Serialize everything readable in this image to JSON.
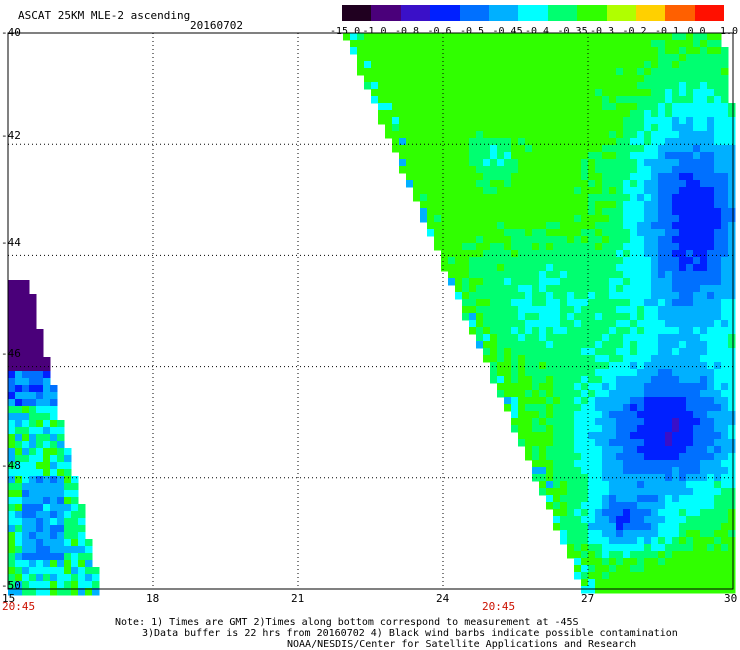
{
  "header": {
    "title": "ASCAT 25KM MLE-2 ascending",
    "date": "20160702"
  },
  "colorbar": {
    "labels": [
      "-15.0",
      "-1.0",
      "-0.8",
      "-0.6",
      "-0.5",
      "-0.45",
      "-0.4",
      "-0.35",
      "-0.3",
      "-0.2",
      "-0.1",
      "0.0",
      "1.0"
    ],
    "colors": [
      "#200020",
      "#4a007a",
      "#3a10c8",
      "#0020ff",
      "#0070ff",
      "#00b0ff",
      "#00ffff",
      "#00ff70",
      "#30ff00",
      "#b0ff00",
      "#ffd000",
      "#ff6000",
      "#ff1000"
    ]
  },
  "axes": {
    "y_ticks": [
      "-40",
      "-42",
      "-44",
      "-46",
      "-48",
      "-50"
    ],
    "x_ticks": [
      "15",
      "18",
      "21",
      "24",
      "27",
      "30"
    ],
    "lat_range": [
      -50,
      -40
    ],
    "lon_range": [
      15,
      30
    ]
  },
  "times": [
    {
      "label": "20:45",
      "lon": 15
    },
    {
      "label": "20:45",
      "lon": 24.9
    }
  ],
  "notes": {
    "line1": "Note: 1) Times are GMT 2)Times along bottom correspond to measurement at -45S",
    "line2": "3)Data buffer is 22 hrs from 20160702 4) Black wind barbs indicate possible contamination",
    "line3": "NOAA/NESDIS/Center for Satellite Applications and Research"
  }
}
